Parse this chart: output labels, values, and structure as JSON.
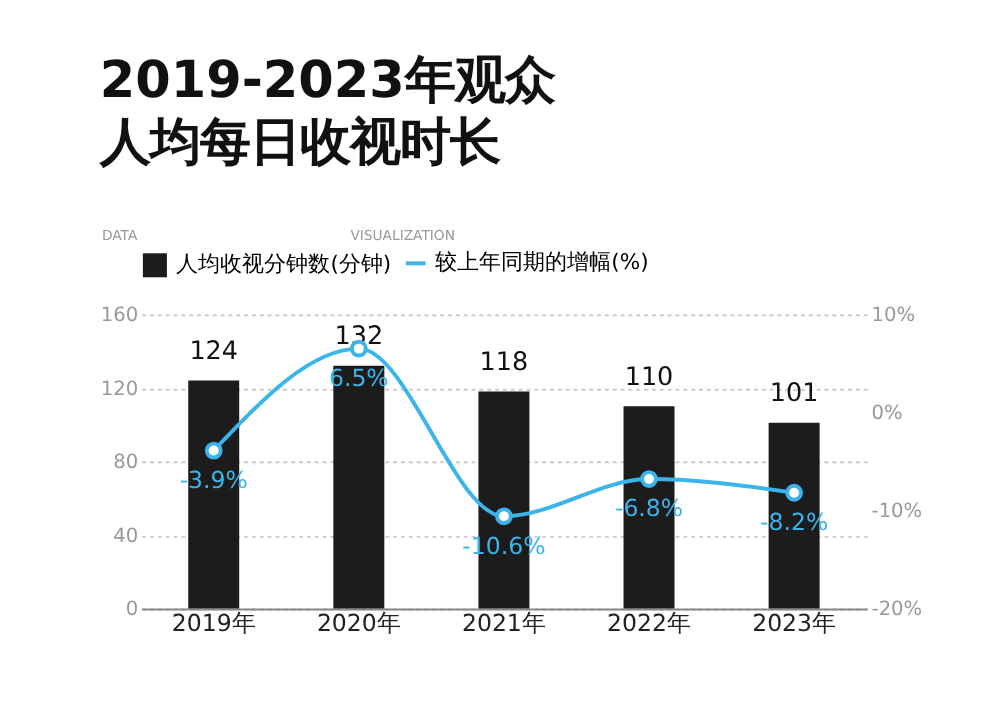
{
  "chart_data": {
    "type": "bar",
    "title": "2019-2023年观众人均每日收视时长",
    "annotations": [
      "DATA",
      "VISUALIZATION"
    ],
    "categories": [
      "2019年",
      "2020年",
      "2021年",
      "2022年",
      "2023年"
    ],
    "series": [
      {
        "name": "人均收视分钟数(分钟)",
        "type": "bar",
        "color": "#1c1c1c",
        "values": [
          124,
          132,
          118,
          110,
          101
        ],
        "data_labels": true
      },
      {
        "name": "较上年同期的增幅(%)",
        "type": "line",
        "axis": "y2",
        "color": "#3ab4ea",
        "marker": "circle",
        "values": [
          -3.9,
          6.5,
          -10.6,
          -6.8,
          -8.2
        ],
        "value_labels": [
          "-3.9%",
          "6.5%",
          "-10.6%",
          "-6.8%",
          "-8.2%"
        ]
      }
    ],
    "ylim": [
      0,
      160
    ],
    "yticks": [
      0,
      40,
      80,
      120,
      160
    ],
    "y2lim": [
      -20,
      10
    ],
    "y2ticks": [
      {
        "value": -20,
        "label": "-20%"
      },
      {
        "value": -10,
        "label": "-10%"
      },
      {
        "value": 0,
        "label": "0%"
      },
      {
        "value": 10,
        "label": "10%"
      }
    ],
    "grid": "y",
    "legend": "top"
  }
}
